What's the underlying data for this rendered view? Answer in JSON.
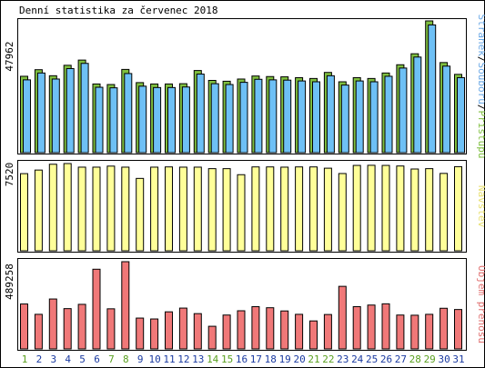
{
  "title": "Denní statistika za červenec 2018",
  "panel1": {
    "max_label": "47962",
    "side_label_parts": [
      {
        "text": "Stránek",
        "color": "#6aa8e6"
      },
      {
        "text": "/",
        "color": "#000000"
      },
      {
        "text": "Souborů",
        "color": "#6aa8e6"
      },
      {
        "text": "/",
        "color": "#000000"
      },
      {
        "text": "Přístupů",
        "color": "#7fbf3f"
      }
    ]
  },
  "panel2": {
    "max_label": "7520",
    "side_label": "Návštěv",
    "side_label_color": "#e8e070"
  },
  "panel3": {
    "max_label": "489258",
    "side_label": "Objem přenosu",
    "side_label_color": "#e07070"
  },
  "colors": {
    "hits": "#7fbf3f",
    "files": "#6ec0f5",
    "pages": "#3a78c8",
    "visits": "#ffff99",
    "volume": "#f07878",
    "weekday_label": "#1a3aa0",
    "weekend_label": "#5aa020"
  },
  "chart_data": [
    {
      "type": "bar",
      "title": "Denní statistika za červenec 2018",
      "categories": [
        "1",
        "2",
        "3",
        "4",
        "5",
        "6",
        "7",
        "8",
        "9",
        "10",
        "11",
        "12",
        "13",
        "14",
        "15",
        "16",
        "17",
        "18",
        "19",
        "20",
        "21",
        "22",
        "23",
        "24",
        "25",
        "26",
        "27",
        "28",
        "29",
        "30",
        "31"
      ],
      "weekend": [
        1,
        7,
        8,
        14,
        15,
        21,
        22,
        28,
        29
      ],
      "ylim": [
        0,
        47962
      ],
      "series": [
        {
          "name": "Přístupů",
          "values": [
            27800,
            30200,
            28000,
            31800,
            33700,
            25000,
            24800,
            30300,
            25500,
            25000,
            25000,
            25100,
            29900,
            26300,
            26000,
            26800,
            27900,
            27700,
            27600,
            27300,
            27000,
            29200,
            25800,
            27300,
            27000,
            29000,
            32000,
            36000,
            47962,
            32800,
            28500
          ]
        },
        {
          "name": "Souborů",
          "values": [
            26500,
            29000,
            26800,
            30600,
            32500,
            23800,
            23600,
            28800,
            24200,
            23700,
            23700,
            23900,
            28600,
            25100,
            24800,
            25600,
            26700,
            26500,
            26400,
            26100,
            25800,
            28000,
            24600,
            26100,
            25800,
            27800,
            30800,
            34800,
            46500,
            31500,
            27300
          ]
        }
      ]
    },
    {
      "type": "bar",
      "categories": [
        "1",
        "2",
        "3",
        "4",
        "5",
        "6",
        "7",
        "8",
        "9",
        "10",
        "11",
        "12",
        "13",
        "14",
        "15",
        "16",
        "17",
        "18",
        "19",
        "20",
        "21",
        "22",
        "23",
        "24",
        "25",
        "26",
        "27",
        "28",
        "29",
        "30",
        "31"
      ],
      "ylim": [
        0,
        7520
      ],
      "series": [
        {
          "name": "Návštěv",
          "values": [
            6650,
            6960,
            7460,
            7520,
            7210,
            7210,
            7300,
            7210,
            6240,
            7210,
            7230,
            7210,
            7210,
            7080,
            7080,
            6560,
            7230,
            7230,
            7210,
            7230,
            7230,
            7120,
            6660,
            7360,
            7370,
            7360,
            7310,
            7050,
            7080,
            6670,
            7250
          ]
        }
      ]
    },
    {
      "type": "bar",
      "categories": [
        "1",
        "2",
        "3",
        "4",
        "5",
        "6",
        "7",
        "8",
        "9",
        "10",
        "11",
        "12",
        "13",
        "14",
        "15",
        "16",
        "17",
        "18",
        "19",
        "20",
        "21",
        "22",
        "23",
        "24",
        "25",
        "26",
        "27",
        "28",
        "29",
        "30",
        "31"
      ],
      "ylim": [
        0,
        489258
      ],
      "series": [
        {
          "name": "Objem přenosu",
          "values": [
            252000,
            194000,
            280000,
            226000,
            250000,
            447000,
            225000,
            489258,
            173000,
            168000,
            208000,
            229000,
            198000,
            127000,
            190000,
            214000,
            237000,
            231000,
            213000,
            194000,
            157000,
            193000,
            351000,
            237000,
            246000,
            253000,
            190000,
            189000,
            194000,
            228000,
            221000
          ]
        }
      ]
    }
  ]
}
